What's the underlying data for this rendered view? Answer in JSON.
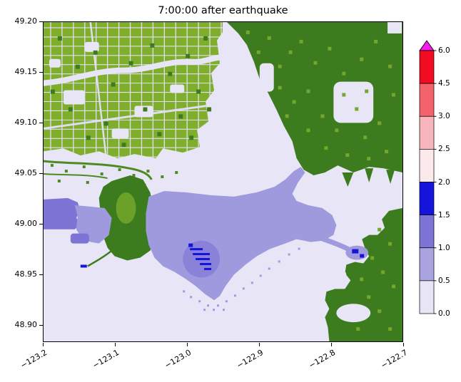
{
  "chart_data": {
    "type": "heatmap",
    "title": "7:00:00 after earthquake",
    "xlabel": "",
    "ylabel": "",
    "xlim": [
      -123.2,
      -122.7
    ],
    "ylim": [
      48.885,
      49.2
    ],
    "grid": false,
    "legend": "colorbar-right",
    "x_ticks": [
      "−123.2",
      "−123.1",
      "−123.0",
      "−122.9",
      "−122.8",
      "−122.7"
    ],
    "y_ticks": [
      "49.20",
      "49.15",
      "49.10",
      "49.05",
      "49.00",
      "48.95",
      "48.90"
    ],
    "colorbar": {
      "extend": "max",
      "levels": [
        0.0,
        0.5,
        1.0,
        1.5,
        2.0,
        2.5,
        3.0,
        4.5,
        6.0
      ],
      "tick_labels_top_to_bottom": [
        "6.0",
        "4.5",
        "3.0",
        "2.5",
        "2.0",
        "1.5",
        "1.0",
        "0.5",
        "0.0"
      ],
      "segment_colors_bottom_to_top": [
        "#e8e6f6",
        "#a9a4e0",
        "#7d74d6",
        "#1414dc",
        "#fce9ec",
        "#f8b6bc",
        "#f4636c",
        "#f30b22"
      ],
      "over_color": "#f41ceb"
    },
    "map_palette": {
      "depth_0_to_0.5": "#e8e6f6",
      "depth_0.5_to_1": "#9f9ade",
      "depth_1_to_1.5": "#7d74d6",
      "depth_1.5_to_2": "#1414dc",
      "land_dark_green": "#3d7c1e",
      "land_light_green": "#7fae2c"
    },
    "regions": [
      {
        "name": "urban street grid (upper left)",
        "category": "land"
      },
      {
        "name": "forested uplands (upper right)",
        "category": "land"
      },
      {
        "name": "peninsula (center left)",
        "category": "land"
      },
      {
        "name": "uplands (lower right)",
        "category": "land"
      },
      {
        "name": "open water and low flats",
        "category": "0.0–0.5"
      },
      {
        "name": "flooded bay (center)",
        "category": "0.5–1.0"
      },
      {
        "name": "deeper flood patches (left edge, west of peninsula)",
        "category": "1.0–1.5"
      },
      {
        "name": "deepest small clusters (center-left shore, near right shore)",
        "category": "1.5–2.0"
      }
    ],
    "description": "Simulated inundation depth raster 7:00:00 after earthquake over a coastal delta/bay region (lon −123.2 to −122.7, lat ≈48.89 to 49.20); green = dry land, lavender/blue shades = water depth per colorbar."
  }
}
